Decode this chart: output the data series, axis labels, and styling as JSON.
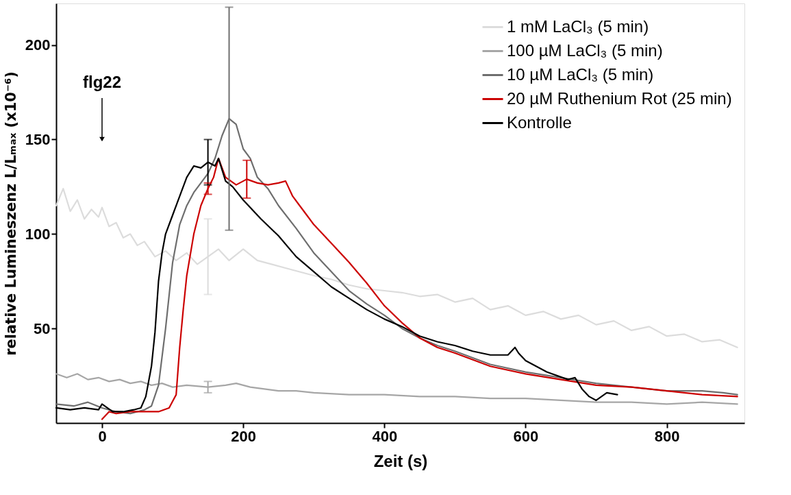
{
  "chart_data": {
    "type": "line",
    "xlabel": "Zeit  (s)",
    "ylabel": "relative Lumineszenz  L/Lₘₐₓ  (x10⁻⁶)",
    "xlim": [
      -65,
      910
    ],
    "ylim": [
      0,
      222
    ],
    "xticks": [
      0,
      200,
      400,
      600,
      800
    ],
    "yticks": [
      50,
      100,
      150,
      200
    ],
    "grid": false,
    "legend": "top right",
    "line_style": "solid",
    "marker": "none",
    "annotations": [
      "flg22"
    ],
    "series": [
      {
        "name": "1 mM LaCl₃ (5 min)",
        "color": "#dcdcdc",
        "x": [
          -65,
          -55,
          -45,
          -35,
          -25,
          -15,
          -5,
          0,
          10,
          20,
          30,
          40,
          50,
          60,
          75,
          90,
          105,
          120,
          135,
          150,
          165,
          180,
          200,
          220,
          240,
          260,
          280,
          300,
          325,
          350,
          375,
          400,
          425,
          450,
          475,
          500,
          525,
          550,
          575,
          600,
          625,
          650,
          675,
          700,
          725,
          750,
          775,
          800,
          825,
          850,
          875,
          900
        ],
        "values": [
          115,
          124,
          112,
          118,
          108,
          113,
          109,
          114,
          104,
          106,
          98,
          100,
          94,
          96,
          88,
          91,
          86,
          90,
          84,
          88,
          92,
          86,
          92,
          86,
          84,
          82,
          80,
          78,
          76,
          73,
          71,
          70,
          69,
          67,
          68,
          64,
          66,
          60,
          62,
          57,
          59,
          55,
          57,
          52,
          54,
          49,
          51,
          46,
          47,
          43,
          44,
          40
        ],
        "errors": [
          null,
          null,
          null,
          null,
          null,
          null,
          null,
          null,
          null,
          null,
          null,
          null,
          null,
          null,
          null,
          null,
          null,
          null,
          null,
          20,
          null,
          null,
          null,
          null,
          null,
          null,
          null,
          null,
          null,
          null,
          null,
          null,
          null,
          null,
          null,
          null,
          null,
          null,
          null,
          null,
          null,
          null,
          null,
          null,
          null,
          null,
          null,
          null,
          null,
          null,
          null,
          null
        ]
      },
      {
        "name": "100 µM LaCl₃ (5 min)",
        "color": "#a6a6a6",
        "x": [
          -65,
          -50,
          -35,
          -20,
          -5,
          10,
          25,
          40,
          55,
          70,
          85,
          100,
          120,
          150,
          175,
          190,
          210,
          230,
          250,
          275,
          300,
          350,
          400,
          450,
          500,
          550,
          600,
          650,
          700,
          750,
          800,
          850,
          900
        ],
        "values": [
          26,
          24,
          26,
          23,
          24,
          22,
          23,
          21,
          22,
          20,
          21,
          19,
          20,
          19,
          20,
          21,
          19,
          18,
          17,
          17,
          16,
          15,
          15,
          14,
          14,
          13,
          13,
          12,
          11,
          11,
          10,
          11,
          10
        ],
        "errors": [
          null,
          null,
          null,
          null,
          null,
          null,
          null,
          null,
          null,
          null,
          null,
          null,
          null,
          3,
          null,
          null,
          null,
          null,
          null,
          null,
          null,
          null,
          null,
          null,
          null,
          null,
          null,
          null,
          null,
          null,
          null,
          null,
          null
        ]
      },
      {
        "name": "10 µM LaCl₃ (5 min)",
        "color": "#6e6e6e",
        "x": [
          -65,
          -40,
          -20,
          0,
          20,
          40,
          60,
          70,
          80,
          90,
          100,
          110,
          120,
          130,
          140,
          150,
          160,
          170,
          180,
          190,
          200,
          210,
          220,
          235,
          250,
          275,
          300,
          325,
          350,
          375,
          400,
          425,
          450,
          475,
          500,
          550,
          600,
          650,
          700,
          750,
          800,
          850,
          880,
          900
        ],
        "values": [
          10,
          9,
          11,
          8,
          6,
          5,
          7,
          9,
          20,
          50,
          85,
          105,
          115,
          122,
          127,
          132,
          140,
          152,
          161,
          158,
          145,
          140,
          130,
          124,
          115,
          103,
          90,
          80,
          70,
          63,
          57,
          50,
          45,
          41,
          38,
          31,
          27,
          24,
          21,
          19,
          17,
          17,
          16,
          15
        ],
        "errors": [
          null,
          null,
          null,
          null,
          null,
          null,
          null,
          null,
          null,
          null,
          null,
          null,
          null,
          null,
          null,
          null,
          null,
          null,
          59,
          null,
          null,
          null,
          null,
          null,
          null,
          null,
          null,
          null,
          null,
          null,
          null,
          null,
          null,
          null,
          null,
          null,
          null,
          null,
          null,
          null,
          null,
          null,
          null,
          null
        ]
      },
      {
        "name": "20 µM Ruthenium Rot (25 min)",
        "color": "#cc0000",
        "x": [
          0,
          10,
          20,
          40,
          60,
          80,
          95,
          105,
          110,
          115,
          120,
          130,
          140,
          150,
          158,
          165,
          175,
          190,
          205,
          220,
          235,
          250,
          260,
          270,
          280,
          290,
          300,
          325,
          350,
          375,
          400,
          425,
          450,
          475,
          500,
          550,
          600,
          650,
          700,
          750,
          800,
          850,
          900
        ],
        "values": [
          2,
          6,
          5,
          6,
          6,
          6,
          8,
          15,
          40,
          60,
          78,
          100,
          115,
          124,
          130,
          140,
          130,
          126,
          129,
          127,
          126,
          127,
          128,
          120,
          115,
          110,
          105,
          95,
          85,
          74,
          62,
          53,
          45,
          40,
          37,
          30,
          26,
          23,
          20,
          19,
          17,
          15,
          14
        ],
        "errors": [
          null,
          null,
          null,
          null,
          null,
          null,
          null,
          null,
          null,
          null,
          null,
          null,
          null,
          3,
          null,
          null,
          null,
          null,
          10,
          null,
          null,
          null,
          null,
          null,
          null,
          null,
          null,
          null,
          null,
          null,
          null,
          null,
          null,
          null,
          null,
          null,
          null,
          null,
          null,
          null,
          null,
          null,
          null
        ]
      },
      {
        "name": "Kontrolle",
        "color": "#000000",
        "x": [
          -65,
          -45,
          -25,
          -5,
          0,
          15,
          30,
          45,
          55,
          62,
          70,
          75,
          80,
          85,
          90,
          100,
          110,
          120,
          130,
          140,
          150,
          160,
          165,
          175,
          185,
          200,
          225,
          250,
          275,
          300,
          325,
          350,
          375,
          400,
          425,
          450,
          475,
          500,
          525,
          550,
          575,
          585,
          590,
          600,
          630,
          660,
          670,
          680,
          690,
          700,
          715,
          730
        ],
        "values": [
          8,
          7,
          8,
          7,
          10,
          6,
          6,
          7,
          8,
          14,
          30,
          48,
          75,
          90,
          100,
          110,
          120,
          130,
          136,
          135,
          138,
          136,
          140,
          128,
          125,
          118,
          108,
          99,
          88,
          80,
          72,
          66,
          60,
          55,
          51,
          46,
          43,
          41,
          38,
          36,
          36,
          40,
          37,
          33,
          27,
          23,
          24,
          18,
          14,
          12,
          16,
          15
        ],
        "errors": [
          null,
          null,
          null,
          null,
          null,
          null,
          null,
          null,
          null,
          null,
          null,
          null,
          null,
          null,
          null,
          null,
          null,
          null,
          null,
          null,
          12,
          null,
          null,
          null,
          null,
          null,
          null,
          null,
          null,
          null,
          null,
          null,
          null,
          null,
          null,
          null,
          null,
          null,
          null,
          null,
          null,
          null,
          null,
          null,
          null,
          null,
          null,
          null,
          null,
          null,
          null,
          null
        ]
      }
    ]
  }
}
